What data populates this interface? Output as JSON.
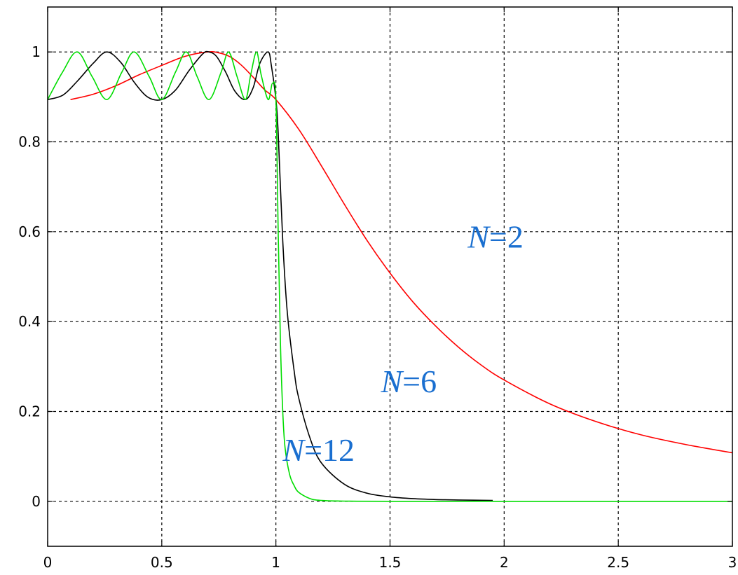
{
  "chart_data": {
    "type": "line",
    "title": "",
    "xlabel": "",
    "ylabel": "",
    "xlim": [
      0,
      3
    ],
    "ylim": [
      -0.1,
      1.1
    ],
    "grid": true,
    "grid_style": "dashed",
    "x_ticks": [
      {
        "value": 0,
        "label": "0"
      },
      {
        "value": 0.5,
        "label": "0.5"
      },
      {
        "value": 1,
        "label": "1"
      },
      {
        "value": 1.5,
        "label": "1.5"
      },
      {
        "value": 2,
        "label": "2"
      },
      {
        "value": 2.5,
        "label": "2.5"
      },
      {
        "value": 3,
        "label": "3"
      }
    ],
    "y_ticks": [
      {
        "value": 0,
        "label": "0"
      },
      {
        "value": 0.2,
        "label": "0.2"
      },
      {
        "value": 0.4,
        "label": "0.4"
      },
      {
        "value": 0.6,
        "label": "0.6"
      },
      {
        "value": 0.8,
        "label": "0.8"
      },
      {
        "value": 1,
        "label": "1"
      }
    ],
    "label_color": "#1a6fd0",
    "series": [
      {
        "name": "N=2",
        "label_prefix": "N",
        "label_suffix": "=2",
        "label_anchor": {
          "x": 1.84,
          "y": 0.565
        },
        "color": "#ff0000",
        "x": [
          0.1,
          0.2,
          0.3,
          0.4,
          0.5,
          0.6,
          0.7,
          0.75,
          0.8,
          0.85,
          0.9,
          0.95,
          1.0,
          1.1,
          1.2,
          1.3,
          1.4,
          1.5,
          1.6,
          1.7,
          1.8,
          1.9,
          2.0,
          2.2,
          2.4,
          2.6,
          2.8,
          3.0
        ],
        "y": [
          0.894,
          0.906,
          0.925,
          0.949,
          0.97,
          0.99,
          1.0,
          0.998,
          0.989,
          0.97,
          0.944,
          0.916,
          0.894,
          0.828,
          0.746,
          0.661,
          0.58,
          0.508,
          0.444,
          0.39,
          0.343,
          0.303,
          0.27,
          0.217,
          0.178,
          0.148,
          0.126,
          0.108
        ]
      },
      {
        "name": "N=6",
        "label_prefix": "N",
        "label_suffix": "=6",
        "label_anchor": {
          "x": 1.46,
          "y": 0.243
        },
        "color": "#000000",
        "x": [
          0.0,
          0.067,
          0.13,
          0.2,
          0.259,
          0.32,
          0.38,
          0.44,
          0.5,
          0.56,
          0.62,
          0.68,
          0.707,
          0.74,
          0.78,
          0.82,
          0.866,
          0.9,
          0.93,
          0.966,
          0.98,
          1.0,
          1.01,
          1.03,
          1.05,
          1.08,
          1.1,
          1.15,
          1.2,
          1.3,
          1.4,
          1.5,
          1.6,
          1.7,
          1.8,
          1.95
        ],
        "y": [
          0.894,
          0.904,
          0.935,
          0.975,
          1.0,
          0.977,
          0.932,
          0.899,
          0.894,
          0.915,
          0.959,
          0.996,
          1.0,
          0.99,
          0.955,
          0.913,
          0.894,
          0.92,
          0.975,
          1.0,
          0.97,
          0.894,
          0.82,
          0.58,
          0.42,
          0.29,
          0.23,
          0.14,
          0.085,
          0.038,
          0.018,
          0.01,
          0.006,
          0.004,
          0.003,
          0.002
        ]
      },
      {
        "name": "N=12",
        "label_prefix": "N",
        "label_suffix": "=12",
        "label_anchor": {
          "x": 1.03,
          "y": 0.09
        },
        "color": "#00dd00",
        "x": [
          0.0,
          0.065,
          0.13,
          0.195,
          0.26,
          0.325,
          0.38,
          0.445,
          0.5,
          0.56,
          0.608,
          0.655,
          0.707,
          0.76,
          0.793,
          0.83,
          0.866,
          0.89,
          0.915,
          0.935,
          0.966,
          0.985,
          1.0,
          1.01,
          1.02,
          1.03,
          1.04,
          1.06,
          1.08,
          1.1,
          1.15,
          1.2,
          1.3,
          1.5,
          2.0,
          2.5,
          3.0
        ],
        "y": [
          0.894,
          0.955,
          1.0,
          0.945,
          0.894,
          0.955,
          1.0,
          0.945,
          0.894,
          0.955,
          1.0,
          0.945,
          0.894,
          0.955,
          1.0,
          0.945,
          0.894,
          0.95,
          1.0,
          0.95,
          0.894,
          0.93,
          0.894,
          0.6,
          0.35,
          0.2,
          0.12,
          0.06,
          0.035,
          0.02,
          0.006,
          0.002,
          0.0005,
          0.0,
          0.0,
          0.0,
          0.0
        ]
      }
    ]
  }
}
